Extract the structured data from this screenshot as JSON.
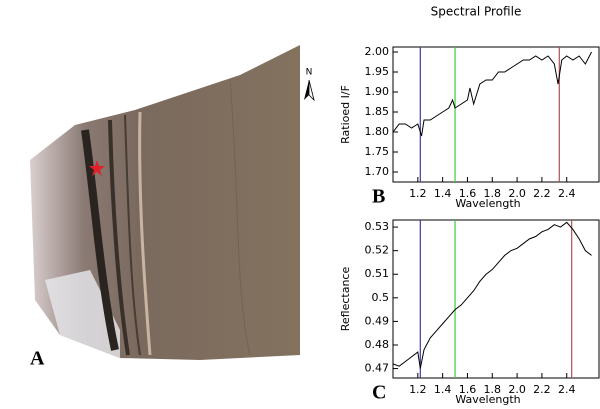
{
  "panel_a": {
    "label": "A",
    "north": "N"
  },
  "chart_data": [
    {
      "type": "line",
      "title": "Spectral Profile",
      "panel_label": "B",
      "x_label": "Wavelength",
      "y_label": "Ratioed I/F",
      "x": [
        1.0,
        1.05,
        1.1,
        1.15,
        1.2,
        1.23,
        1.25,
        1.3,
        1.35,
        1.4,
        1.45,
        1.48,
        1.5,
        1.55,
        1.6,
        1.62,
        1.65,
        1.7,
        1.75,
        1.8,
        1.85,
        1.9,
        1.95,
        2.0,
        2.05,
        2.1,
        2.15,
        2.2,
        2.25,
        2.3,
        2.33,
        2.36,
        2.4,
        2.45,
        2.5,
        2.55,
        2.6
      ],
      "series": [
        {
          "color": "#000000",
          "values": [
            1.8,
            1.82,
            1.82,
            1.81,
            1.82,
            1.79,
            1.83,
            1.83,
            1.84,
            1.85,
            1.86,
            1.88,
            1.86,
            1.87,
            1.88,
            1.91,
            1.87,
            1.92,
            1.93,
            1.93,
            1.95,
            1.95,
            1.96,
            1.97,
            1.98,
            1.98,
            1.99,
            1.98,
            1.99,
            1.97,
            1.92,
            1.98,
            1.99,
            1.98,
            1.99,
            1.97,
            2.0
          ]
        }
      ],
      "markers": [
        {
          "x": 1.22,
          "color": "#3a3aa0"
        },
        {
          "x": 1.5,
          "color": "#3ccc3c"
        },
        {
          "x": 2.34,
          "color": "#b05050"
        }
      ],
      "xlim": [
        1.0,
        2.66
      ],
      "ylim": [
        1.675,
        2.0125
      ],
      "xticks": [
        1.2,
        1.4,
        1.6,
        1.8,
        {
          "value": 2.0,
          "label": "2.0"
        },
        2.2,
        2.4
      ],
      "yticks": [
        {
          "value": 1.7,
          "label": "1.70"
        },
        {
          "value": 1.75,
          "label": "1.75"
        },
        {
          "value": 1.8,
          "label": "1.80"
        },
        {
          "value": 1.85,
          "label": "1.85"
        },
        {
          "value": 1.9,
          "label": "1.90"
        },
        {
          "value": 1.95,
          "label": "1.95"
        },
        {
          "value": 2.0,
          "label": "2.00"
        }
      ]
    },
    {
      "type": "line",
      "panel_label": "C",
      "x_label": "Wavelength",
      "y_label": "Reflectance",
      "x": [
        1.0,
        1.05,
        1.1,
        1.15,
        1.2,
        1.22,
        1.25,
        1.3,
        1.35,
        1.4,
        1.45,
        1.5,
        1.55,
        1.6,
        1.65,
        1.7,
        1.75,
        1.8,
        1.85,
        1.9,
        1.95,
        2.0,
        2.05,
        2.1,
        2.15,
        2.2,
        2.25,
        2.3,
        2.35,
        2.4,
        2.45,
        2.5,
        2.55,
        2.6
      ],
      "series": [
        {
          "color": "#000000",
          "values": [
            0.472,
            0.471,
            0.473,
            0.475,
            0.477,
            0.47,
            0.478,
            0.483,
            0.486,
            0.489,
            0.492,
            0.495,
            0.497,
            0.5,
            0.503,
            0.507,
            0.51,
            0.512,
            0.515,
            0.518,
            0.52,
            0.521,
            0.523,
            0.525,
            0.526,
            0.528,
            0.529,
            0.531,
            0.53,
            0.532,
            0.529,
            0.525,
            0.52,
            0.518
          ]
        }
      ],
      "markers": [
        {
          "x": 1.22,
          "color": "#3a3aa0"
        },
        {
          "x": 1.5,
          "color": "#3ccc3c"
        },
        {
          "x": 2.44,
          "color": "#b05050"
        }
      ],
      "xlim": [
        1.0,
        2.66
      ],
      "ylim": [
        0.466,
        0.533
      ],
      "xticks": [
        1.2,
        1.4,
        1.6,
        1.8,
        {
          "value": 2.0,
          "label": "2.0"
        },
        2.2,
        2.4
      ],
      "yticks": [
        0.47,
        0.48,
        0.49,
        0.5,
        0.51,
        0.52,
        0.53
      ]
    }
  ]
}
